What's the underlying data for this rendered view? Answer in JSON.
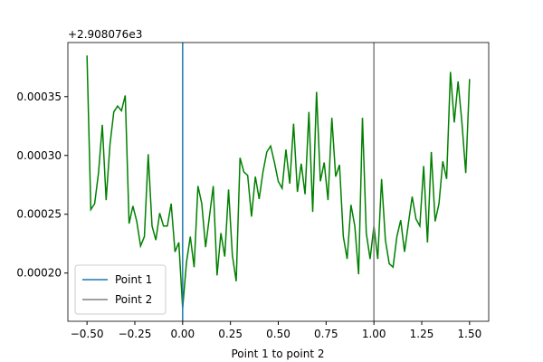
{
  "chart_data": {
    "type": "line",
    "xlabel": "Point 1 to point 2",
    "y_offset_text": "+2.908076e3",
    "x": [
      -0.5,
      -0.48,
      -0.46,
      -0.44,
      -0.42,
      -0.4,
      -0.38,
      -0.36,
      -0.34,
      -0.32,
      -0.3,
      -0.28,
      -0.26,
      -0.24,
      -0.22,
      -0.2,
      -0.18,
      -0.16,
      -0.14,
      -0.12,
      -0.1,
      -0.08,
      -0.06,
      -0.04,
      -0.02,
      0,
      0.02,
      0.04,
      0.06,
      0.08,
      0.1,
      0.12,
      0.14,
      0.16,
      0.18,
      0.2,
      0.22,
      0.24,
      0.26,
      0.28,
      0.3,
      0.32,
      0.34,
      0.36,
      0.38,
      0.4,
      0.42,
      0.44,
      0.46,
      0.48,
      0.5,
      0.52,
      0.54,
      0.56,
      0.58,
      0.6,
      0.62,
      0.64,
      0.66,
      0.68,
      0.7,
      0.72,
      0.74,
      0.76,
      0.78,
      0.8,
      0.82,
      0.84,
      0.86,
      0.88,
      0.9,
      0.92,
      0.94,
      0.96,
      0.98,
      1,
      1.02,
      1.04,
      1.06,
      1.08,
      1.1,
      1.12,
      1.14,
      1.16,
      1.18,
      1.2,
      1.22,
      1.24,
      1.26,
      1.28,
      1.3,
      1.32,
      1.34,
      1.36,
      1.38,
      1.4,
      1.42,
      1.44,
      1.46,
      1.48,
      1.5
    ],
    "series": [
      {
        "color": "#008000",
        "values": [
          0.000385,
          0.000254,
          0.000259,
          0.000285,
          0.000326,
          0.000262,
          0.000309,
          0.000337,
          0.000342,
          0.000338,
          0.000351,
          0.000242,
          0.000257,
          0.000244,
          0.000223,
          0.000231,
          0.000301,
          0.00024,
          0.000228,
          0.000251,
          0.00024,
          0.00024,
          0.000259,
          0.000218,
          0.000226,
          0.00017,
          0.000209,
          0.000231,
          0.000205,
          0.000274,
          0.000259,
          0.000222,
          0.000248,
          0.000274,
          0.000198,
          0.000234,
          0.000214,
          0.000271,
          0.000215,
          0.000193,
          0.000298,
          0.000286,
          0.000283,
          0.000248,
          0.000282,
          0.000263,
          0.000286,
          0.000303,
          0.000308,
          0.000294,
          0.000278,
          0.000272,
          0.000305,
          0.000276,
          0.000327,
          0.000269,
          0.000293,
          0.000267,
          0.000337,
          0.000252,
          0.000354,
          0.000278,
          0.000294,
          0.000262,
          0.000332,
          0.000282,
          0.000292,
          0.000231,
          0.000212,
          0.000258,
          0.00024,
          0.000199,
          0.000332,
          0.000234,
          0.000212,
          0.00024,
          0.000212,
          0.00028,
          0.000228,
          0.000208,
          0.000205,
          0.000231,
          0.000245,
          0.000218,
          0.000242,
          0.000265,
          0.000246,
          0.00024,
          0.000291,
          0.000226,
          0.000303,
          0.000244,
          0.000259,
          0.000295,
          0.00028,
          0.000371,
          0.000328,
          0.000363,
          0.000328,
          0.000285,
          0.000365
        ]
      }
    ],
    "vlines": [
      {
        "name": "Point 1",
        "color": "#1f77b4",
        "x": 0
      },
      {
        "name": "Point 2",
        "color": "#808080",
        "x": 1
      }
    ],
    "legend": "lower left",
    "xlim": [
      -0.6,
      1.6
    ],
    "ylim": [
      0.000159,
      0.000396
    ],
    "xticks": [
      {
        "value": -0.5,
        "label": "−0.50"
      },
      {
        "value": -0.25,
        "label": "−0.25"
      },
      {
        "value": 0,
        "label": "0.00"
      },
      {
        "value": 0.25,
        "label": "0.25"
      },
      {
        "value": 0.5,
        "label": "0.50"
      },
      {
        "value": 0.75,
        "label": "0.75"
      },
      {
        "value": 1,
        "label": "1.00"
      },
      {
        "value": 1.25,
        "label": "1.25"
      },
      {
        "value": 1.5,
        "label": "1.50"
      }
    ],
    "yticks": [
      {
        "value": 0.0002,
        "label": "0.00020"
      },
      {
        "value": 0.00025,
        "label": "0.00025"
      },
      {
        "value": 0.0003,
        "label": "0.00030"
      },
      {
        "value": 0.00035,
        "label": "0.00035"
      }
    ]
  }
}
